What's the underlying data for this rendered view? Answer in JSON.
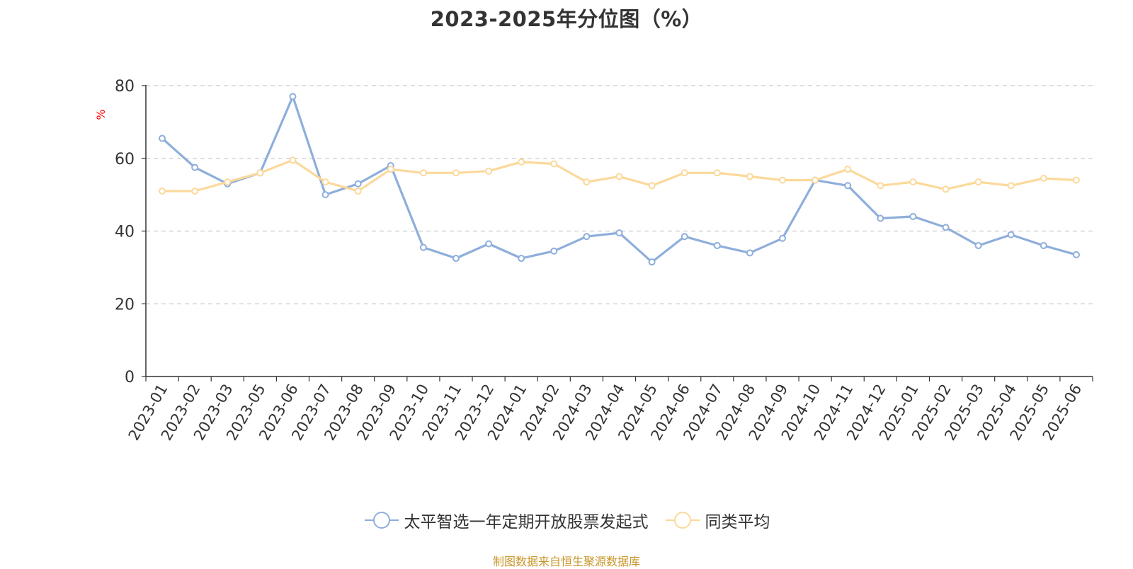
{
  "chart_data": {
    "type": "line",
    "title": "2023-2025年分位图（%）",
    "ylabel": "%",
    "ylim": [
      0,
      80
    ],
    "yticks": [
      0,
      20,
      40,
      60,
      80
    ],
    "grid": true,
    "legend_position": "bottom",
    "categories": [
      "2023-01",
      "2023-02",
      "2023-03",
      "2023-05",
      "2023-06",
      "2023-07",
      "2023-08",
      "2023-09",
      "2023-10",
      "2023-11",
      "2023-12",
      "2024-01",
      "2024-02",
      "2024-03",
      "2024-04",
      "2024-05",
      "2024-06",
      "2024-07",
      "2024-08",
      "2024-09",
      "2024-10",
      "2024-11",
      "2024-12",
      "2025-01",
      "2025-02",
      "2025-03",
      "2025-04",
      "2025-05",
      "2025-06"
    ],
    "series": [
      {
        "name": "太平智选一年定期开放股票发起式",
        "color": "#8eaedb",
        "values": [
          65.5,
          57.5,
          53,
          56,
          77,
          50,
          53,
          58,
          35.5,
          32.5,
          36.5,
          32.5,
          34.5,
          38.5,
          39.5,
          31.5,
          38.5,
          36,
          34,
          38,
          54,
          52.5,
          43.5,
          44,
          41,
          36,
          39,
          36,
          33.5
        ]
      },
      {
        "name": "同类平均",
        "color": "#fbd99b",
        "values": [
          51,
          51,
          53.5,
          56,
          59.5,
          53.5,
          51,
          57,
          56,
          56,
          56.5,
          59,
          58.5,
          53.5,
          55,
          52.5,
          56,
          56,
          55,
          54,
          54,
          57,
          52.5,
          53.5,
          51.5,
          53.5,
          52.5,
          54.5,
          54
        ]
      }
    ]
  },
  "source_note": "制图数据来自恒生聚源数据库"
}
